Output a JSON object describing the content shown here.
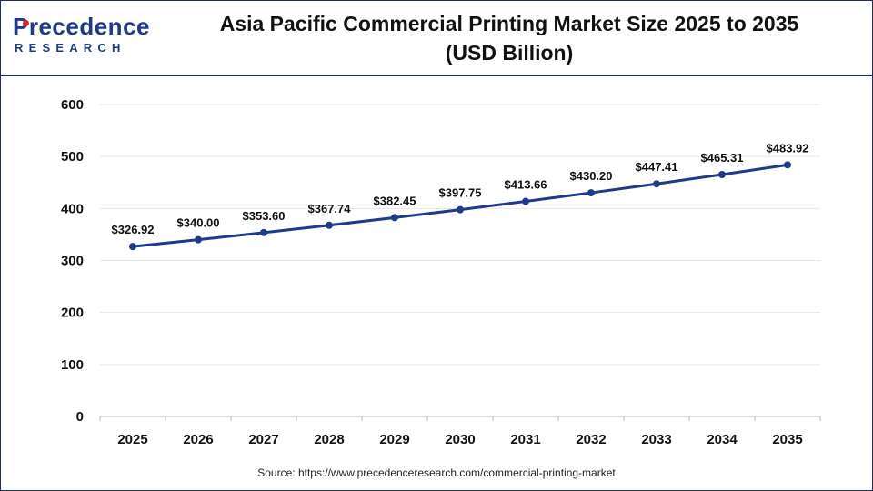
{
  "brand": {
    "logo_top": "Precedence",
    "logo_bottom": "RESEARCH"
  },
  "header": {
    "title_line1": "Asia Pacific Commercial Printing Market Size 2025 to 2035",
    "title_line2": "(USD Billion)"
  },
  "source": "Source: https://www.precedenceresearch.com/commercial-printing-market",
  "colors": {
    "line": "#1f3a8a",
    "brand_navy": "#1f2d5c",
    "logo_accent": "#e2262a",
    "gridline": "#e6e6e6"
  },
  "chart_data": {
    "type": "line",
    "x": [
      "2025",
      "2026",
      "2027",
      "2028",
      "2029",
      "2030",
      "2031",
      "2032",
      "2033",
      "2034",
      "2035"
    ],
    "series": [
      {
        "values": [
          326.92,
          340.0,
          353.6,
          367.74,
          382.45,
          397.75,
          413.66,
          430.2,
          447.41,
          465.31,
          483.92
        ],
        "labels": [
          "$326.92",
          "$340.00",
          "$353.60",
          "$367.74",
          "$382.45",
          "$397.75",
          "$413.66",
          "$430.20",
          "$447.41",
          "$465.31",
          "$483.92"
        ]
      }
    ],
    "yticks": [
      0,
      100,
      200,
      300,
      400,
      500,
      600
    ],
    "ylim": [
      0,
      600
    ],
    "grid": true,
    "markers": true
  }
}
